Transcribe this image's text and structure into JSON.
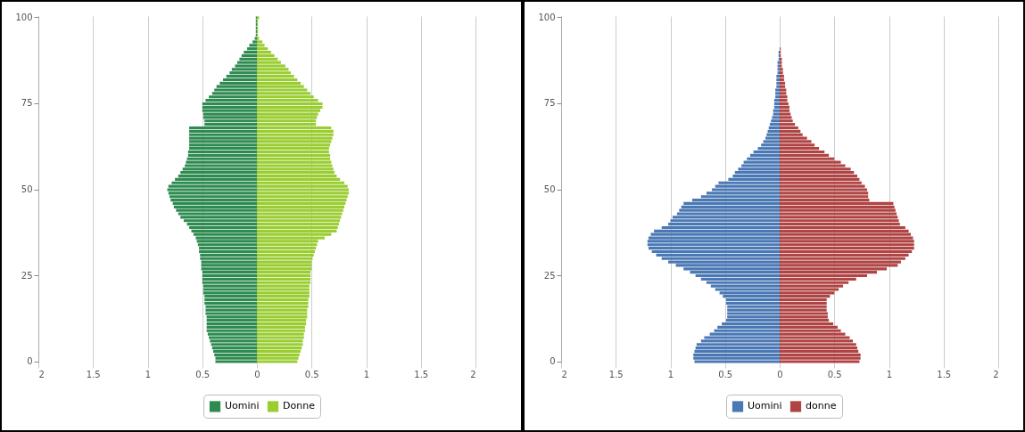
{
  "chart_data": [
    {
      "type": "bar",
      "orientation": "horizontal",
      "categories": [
        "100",
        null,
        null,
        null,
        null,
        null,
        null,
        null,
        null,
        null,
        null,
        null,
        null,
        null,
        null,
        null,
        null,
        null,
        null,
        null,
        null,
        null,
        null,
        null,
        null,
        "75",
        null,
        null,
        null,
        null,
        null,
        null,
        null,
        null,
        null,
        null,
        null,
        null,
        null,
        null,
        null,
        null,
        null,
        null,
        null,
        null,
        null,
        null,
        null,
        null,
        "50",
        null,
        null,
        null,
        null,
        null,
        null,
        null,
        null,
        null,
        null,
        null,
        null,
        null,
        null,
        null,
        null,
        null,
        null,
        null,
        null,
        null,
        null,
        null,
        null,
        "25",
        null,
        null,
        null,
        null,
        null,
        null,
        null,
        null,
        null,
        null,
        null,
        null,
        null,
        null,
        null,
        null,
        null,
        null,
        null,
        null,
        null,
        null,
        null,
        null,
        "0"
      ],
      "series": [
        {
          "name": "Uomini",
          "color": "#2e8b50",
          "values": [
            -0.01,
            -0.01,
            -0.01,
            -0.01,
            -0.01,
            -0.01,
            -0.02,
            -0.04,
            -0.07,
            -0.09,
            -0.12,
            -0.14,
            -0.16,
            -0.18,
            -0.2,
            -0.23,
            -0.25,
            -0.28,
            -0.31,
            -0.34,
            -0.37,
            -0.39,
            -0.41,
            -0.44,
            -0.47,
            -0.5,
            -0.5,
            -0.5,
            -0.49,
            -0.49,
            -0.48,
            -0.48,
            -0.62,
            -0.62,
            -0.62,
            -0.62,
            -0.62,
            -0.62,
            -0.62,
            -0.63,
            -0.63,
            -0.64,
            -0.65,
            -0.66,
            -0.68,
            -0.7,
            -0.72,
            -0.75,
            -0.78,
            -0.81,
            -0.82,
            -0.81,
            -0.8,
            -0.79,
            -0.77,
            -0.76,
            -0.74,
            -0.72,
            -0.7,
            -0.67,
            -0.64,
            -0.62,
            -0.6,
            -0.58,
            -0.56,
            -0.55,
            -0.54,
            -0.53,
            -0.53,
            -0.52,
            -0.52,
            -0.51,
            -0.51,
            -0.51,
            -0.5,
            -0.5,
            -0.5,
            -0.5,
            -0.49,
            -0.49,
            -0.49,
            -0.48,
            -0.48,
            -0.48,
            -0.47,
            -0.47,
            -0.47,
            -0.46,
            -0.46,
            -0.46,
            -0.46,
            -0.46,
            -0.45,
            -0.44,
            -0.43,
            -0.42,
            -0.41,
            -0.4,
            -0.39,
            -0.38,
            -0.38
          ]
        },
        {
          "name": "Donne",
          "color": "#9acd32",
          "values": [
            0.02,
            0.01,
            0.01,
            0.01,
            0.01,
            0.01,
            0.02,
            0.05,
            0.07,
            0.1,
            0.13,
            0.16,
            0.19,
            0.22,
            0.26,
            0.29,
            0.31,
            0.34,
            0.37,
            0.4,
            0.43,
            0.46,
            0.49,
            0.52,
            0.56,
            0.6,
            0.6,
            0.58,
            0.56,
            0.55,
            0.54,
            0.54,
            0.68,
            0.7,
            0.7,
            0.69,
            0.68,
            0.67,
            0.66,
            0.66,
            0.67,
            0.67,
            0.68,
            0.69,
            0.7,
            0.71,
            0.73,
            0.76,
            0.8,
            0.83,
            0.84,
            0.84,
            0.83,
            0.82,
            0.81,
            0.8,
            0.79,
            0.78,
            0.77,
            0.76,
            0.75,
            0.74,
            0.73,
            0.68,
            0.62,
            0.56,
            0.55,
            0.54,
            0.53,
            0.52,
            0.51,
            0.5,
            0.5,
            0.5,
            0.49,
            0.49,
            0.49,
            0.49,
            0.48,
            0.48,
            0.48,
            0.48,
            0.47,
            0.47,
            0.47,
            0.46,
            0.46,
            0.46,
            0.45,
            0.45,
            0.44,
            0.44,
            0.43,
            0.43,
            0.42,
            0.42,
            0.41,
            0.4,
            0.39,
            0.38,
            0.37
          ]
        }
      ],
      "xlim": [
        -2,
        2
      ],
      "xticks": [
        {
          "value": -2,
          "label": "2"
        },
        {
          "value": -1.5,
          "label": "1.5"
        },
        {
          "value": -1,
          "label": "1"
        },
        {
          "value": -0.5,
          "label": "0.5"
        },
        0,
        0.5,
        1,
        1.5,
        2
      ],
      "grid": "x",
      "legend": "bottom",
      "stacked": true
    },
    {
      "type": "bar",
      "orientation": "horizontal",
      "categories": [
        "100",
        null,
        null,
        null,
        null,
        null,
        null,
        null,
        null,
        null,
        null,
        null,
        null,
        null,
        null,
        null,
        null,
        null,
        null,
        null,
        null,
        null,
        null,
        null,
        null,
        "75",
        null,
        null,
        null,
        null,
        null,
        null,
        null,
        null,
        null,
        null,
        null,
        null,
        null,
        null,
        null,
        null,
        null,
        null,
        null,
        null,
        null,
        null,
        null,
        null,
        "50",
        null,
        null,
        null,
        null,
        null,
        null,
        null,
        null,
        null,
        null,
        null,
        null,
        null,
        null,
        null,
        null,
        null,
        null,
        null,
        null,
        null,
        null,
        null,
        null,
        "25",
        null,
        null,
        null,
        null,
        null,
        null,
        null,
        null,
        null,
        null,
        null,
        null,
        null,
        null,
        null,
        null,
        null,
        null,
        null,
        null,
        null,
        null,
        null,
        null,
        "0"
      ],
      "series": [
        {
          "name": "Uomini",
          "color": "#4a78b4",
          "values": [
            0,
            0,
            0,
            0,
            0,
            0,
            0,
            0,
            0,
            0,
            -0.01,
            -0.01,
            -0.01,
            -0.02,
            -0.02,
            -0.02,
            -0.02,
            -0.03,
            -0.03,
            -0.03,
            -0.03,
            -0.04,
            -0.04,
            -0.04,
            -0.05,
            -0.05,
            -0.05,
            -0.06,
            -0.06,
            -0.07,
            -0.08,
            -0.09,
            -0.1,
            -0.11,
            -0.12,
            -0.13,
            -0.15,
            -0.17,
            -0.2,
            -0.24,
            -0.27,
            -0.3,
            -0.33,
            -0.35,
            -0.38,
            -0.41,
            -0.43,
            -0.47,
            -0.56,
            -0.59,
            -0.62,
            -0.67,
            -0.72,
            -0.8,
            -0.88,
            -0.9,
            -0.92,
            -0.94,
            -0.98,
            -1.0,
            -1.02,
            -1.08,
            -1.15,
            -1.18,
            -1.2,
            -1.21,
            -1.21,
            -1.2,
            -1.17,
            -1.13,
            -1.08,
            -1.02,
            -0.95,
            -0.88,
            -0.82,
            -0.77,
            -0.72,
            -0.67,
            -0.63,
            -0.59,
            -0.55,
            -0.52,
            -0.49,
            -0.49,
            -0.48,
            -0.48,
            -0.48,
            -0.48,
            -0.49,
            -0.53,
            -0.57,
            -0.6,
            -0.64,
            -0.69,
            -0.72,
            -0.76,
            -0.77,
            -0.78,
            -0.79,
            -0.79,
            -0.78
          ]
        },
        {
          "name": "donne",
          "color": "#b04444",
          "values": [
            0,
            0,
            0,
            0,
            0,
            0,
            0,
            0,
            0,
            0.01,
            0.01,
            0.01,
            0.02,
            0.02,
            0.02,
            0.03,
            0.03,
            0.04,
            0.04,
            0.05,
            0.05,
            0.06,
            0.06,
            0.07,
            0.07,
            0.08,
            0.09,
            0.09,
            0.1,
            0.11,
            0.12,
            0.14,
            0.17,
            0.19,
            0.21,
            0.25,
            0.29,
            0.32,
            0.36,
            0.41,
            0.45,
            0.5,
            0.56,
            0.6,
            0.65,
            0.68,
            0.71,
            0.73,
            0.75,
            0.78,
            0.8,
            0.81,
            0.81,
            0.82,
            1.04,
            1.05,
            1.06,
            1.07,
            1.08,
            1.09,
            1.1,
            1.15,
            1.18,
            1.2,
            1.22,
            1.23,
            1.23,
            1.23,
            1.21,
            1.18,
            1.15,
            1.11,
            1.08,
            0.98,
            0.89,
            0.8,
            0.7,
            0.63,
            0.58,
            0.54,
            0.5,
            0.46,
            0.43,
            0.43,
            0.43,
            0.43,
            0.44,
            0.44,
            0.45,
            0.49,
            0.53,
            0.56,
            0.6,
            0.64,
            0.67,
            0.7,
            0.71,
            0.72,
            0.74,
            0.74,
            0.73
          ]
        }
      ],
      "xlim": [
        -2,
        2
      ],
      "xticks": [
        {
          "value": -2,
          "label": "2"
        },
        {
          "value": -1.5,
          "label": "1.5"
        },
        {
          "value": -1,
          "label": "1"
        },
        {
          "value": -0.5,
          "label": "0.5"
        },
        0,
        0.5,
        1,
        1.5,
        2
      ],
      "grid": "x",
      "legend": "bottom",
      "stacked": true
    }
  ]
}
